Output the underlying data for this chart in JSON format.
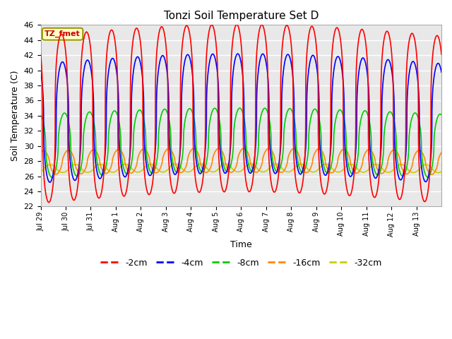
{
  "title": "Tonzi Soil Temperature Set D",
  "xlabel": "Time",
  "ylabel": "Soil Temperature (C)",
  "ylim": [
    22,
    46
  ],
  "background_color": "#e8e8e8",
  "grid_color": "white",
  "annotation_text": "TZ_fmet",
  "annotation_bg": "#ffffcc",
  "annotation_border": "#999900",
  "series_order": [
    "-2cm",
    "-4cm",
    "-8cm",
    "-16cm",
    "-32cm"
  ],
  "colors": {
    "-2cm": "#ff0000",
    "-4cm": "#0000ff",
    "-8cm": "#00cc00",
    "-16cm": "#ff8800",
    "-32cm": "#cccc00"
  },
  "lw": 1.2,
  "xtick_labels": [
    "Jul 29",
    "Jul 30",
    "Jul 31",
    "Aug 1",
    "Aug 2",
    "Aug 3",
    "Aug 4",
    "Aug 5",
    "Aug 6",
    "Aug 7",
    "Aug 8",
    "Aug 9",
    "Aug 10",
    "Aug 11",
    "Aug 12",
    "Aug 13"
  ],
  "ytick_vals": [
    22,
    24,
    26,
    28,
    30,
    32,
    34,
    36,
    38,
    40,
    42,
    44,
    46
  ],
  "legend_labels": [
    "-2cm",
    "-4cm",
    "-8cm",
    "-16cm",
    "-32cm"
  ]
}
